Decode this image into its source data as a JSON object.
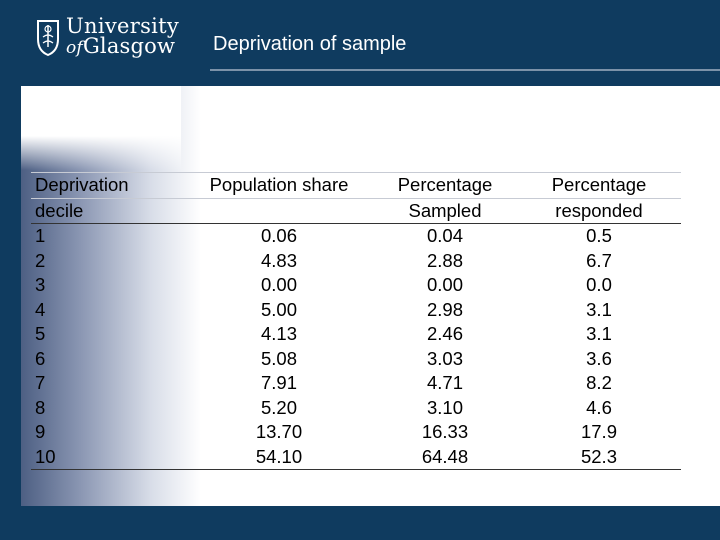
{
  "branding": {
    "line1": "University",
    "line2_of": "of",
    "line2_name": "Glasgow"
  },
  "slide": {
    "title": "Deprivation of sample"
  },
  "table": {
    "headers": [
      [
        "Deprivation",
        "decile"
      ],
      [
        "Population share",
        ""
      ],
      [
        "Percentage",
        "Sampled"
      ],
      [
        "Percentage",
        "responded"
      ]
    ],
    "rows": [
      [
        "1",
        "0.06",
        "0.04",
        "0.5"
      ],
      [
        "2",
        "4.83",
        "2.88",
        "6.7"
      ],
      [
        "3",
        "0.00",
        "0.00",
        "0.0"
      ],
      [
        "4",
        "5.00",
        "2.98",
        "3.1"
      ],
      [
        "5",
        "4.13",
        "2.46",
        "3.1"
      ],
      [
        "6",
        "5.08",
        "3.03",
        "3.6"
      ],
      [
        "7",
        "7.91",
        "4.71",
        "8.2"
      ],
      [
        "8",
        "5.20",
        "3.10",
        "4.6"
      ],
      [
        "9",
        "13.70",
        "16.33",
        "17.9"
      ],
      [
        "10",
        "54.10",
        "64.48",
        "52.3"
      ]
    ]
  },
  "colors": {
    "brand_navy": "#0f3b5f",
    "text": "#000000"
  }
}
